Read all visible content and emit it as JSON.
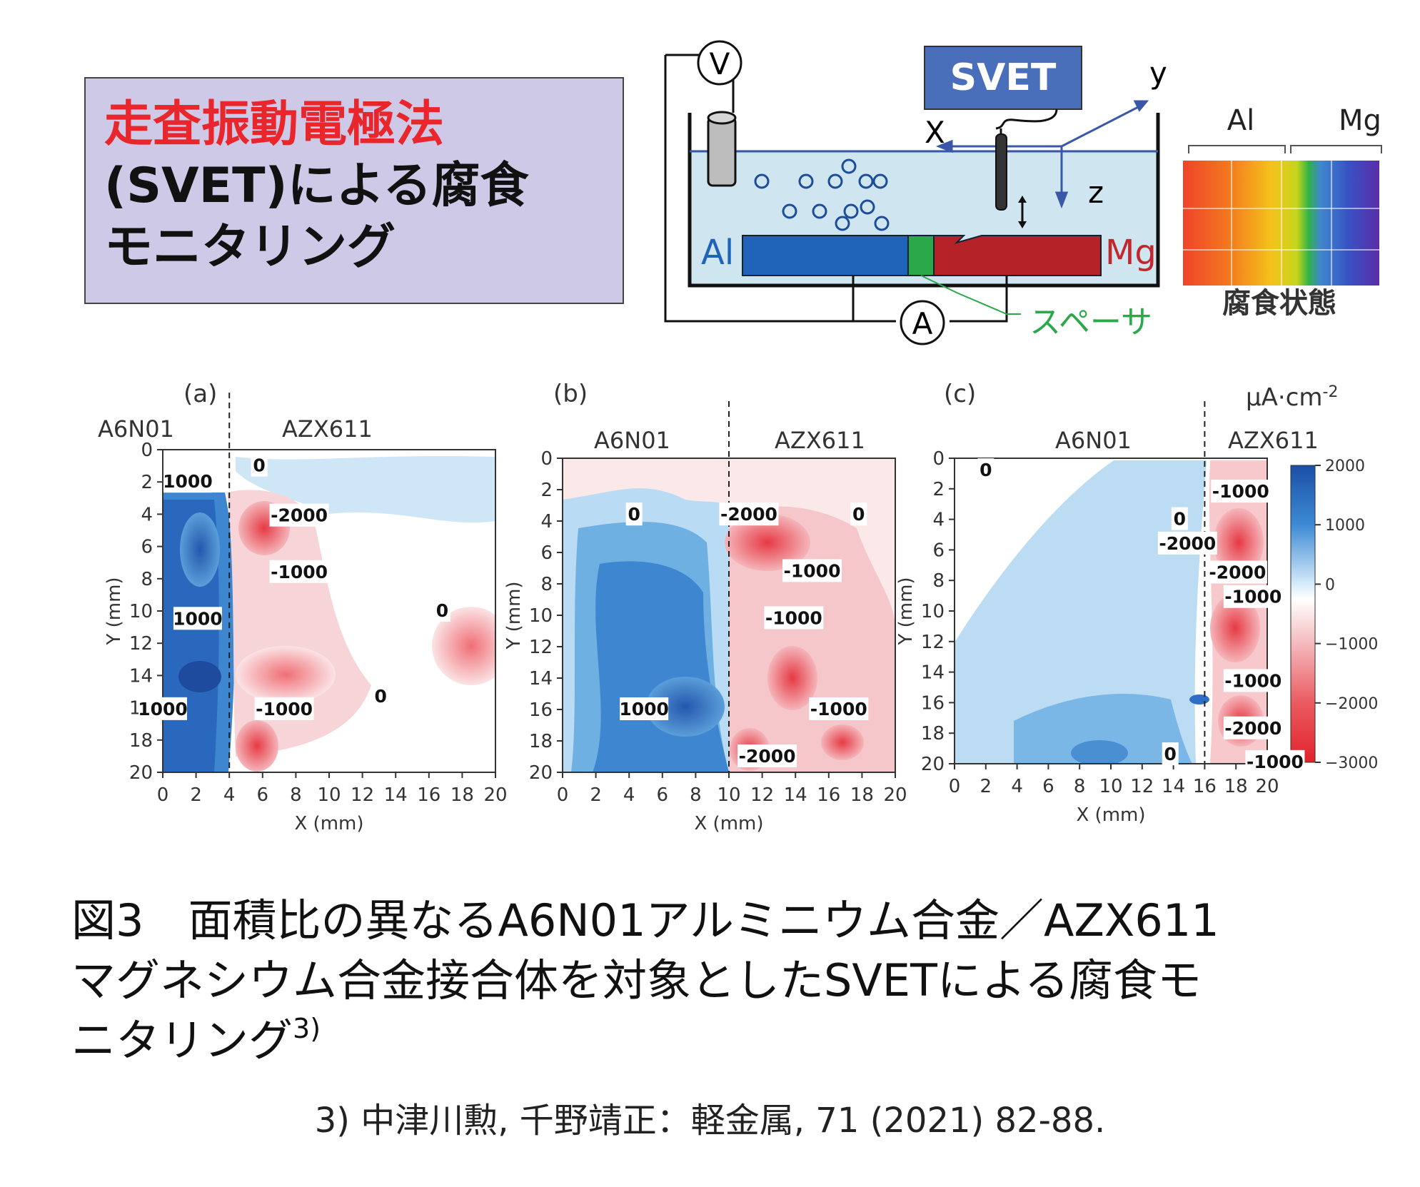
{
  "title": {
    "line1": "走査振動電極法",
    "line2": "(SVET)による腐食",
    "line3": "モニタリング"
  },
  "schematic": {
    "voltmeter": "V",
    "ammeter": "A",
    "svet_label": "SVET",
    "axis_x": "X",
    "axis_y": "y",
    "axis_z": "z",
    "al_label": "Al",
    "mg_label": "Mg",
    "spacer_label": "スペーサ"
  },
  "corrosion_map": {
    "al_label": "Al",
    "mg_label": "Mg",
    "caption": "腐食状態"
  },
  "plots": {
    "xlabel": "X (mm)",
    "ylabel": "Y (mm)",
    "xticks": [
      "0",
      "2",
      "4",
      "6",
      "8",
      "10",
      "12",
      "14",
      "16",
      "18",
      "20"
    ],
    "yticks": [
      "0",
      "2",
      "4",
      "6",
      "8",
      "10",
      "12",
      "14",
      "16",
      "18",
      "20"
    ],
    "left_alloy": "A6N01",
    "right_alloy": "AZX611",
    "panel_a": {
      "label": "(a)",
      "boundary_x": 4,
      "annotations": [
        {
          "text": "1000",
          "x": 1.5,
          "y": 2
        },
        {
          "text": "0",
          "x": 5.8,
          "y": 1
        },
        {
          "text": "-2000",
          "x": 8.2,
          "y": 4.1
        },
        {
          "text": "-1000",
          "x": 8.2,
          "y": 7.6
        },
        {
          "text": "1000",
          "x": 2.1,
          "y": 10.5
        },
        {
          "text": "0",
          "x": 16.8,
          "y": 10
        },
        {
          "text": "0",
          "x": 13.1,
          "y": 15.3
        },
        {
          "text": "1000",
          "x": 0,
          "y": 16.1
        },
        {
          "text": "-1000",
          "x": 7.3,
          "y": 16.1
        }
      ]
    },
    "panel_b": {
      "label": "(b)",
      "boundary_x": 10,
      "annotations": [
        {
          "text": "0",
          "x": 4.3,
          "y": 3.6
        },
        {
          "text": "-2000",
          "x": 11.2,
          "y": 3.6
        },
        {
          "text": "0",
          "x": 17.8,
          "y": 3.6
        },
        {
          "text": "-1000",
          "x": 15,
          "y": 7.2
        },
        {
          "text": "-1000",
          "x": 13.9,
          "y": 10.2
        },
        {
          "text": "1000",
          "x": 4.9,
          "y": 16
        },
        {
          "text": "-1000",
          "x": 16.6,
          "y": 16
        },
        {
          "text": "-2000",
          "x": 12.3,
          "y": 19
        }
      ]
    },
    "panel_c": {
      "label": "(c)",
      "boundary_x": 16,
      "annotations": [
        {
          "text": "0",
          "x": 2,
          "y": 0.8
        },
        {
          "text": "-1000",
          "x": 18.3,
          "y": 2.2
        },
        {
          "text": "0",
          "x": 14.4,
          "y": 4
        },
        {
          "text": "-2000",
          "x": 14.9,
          "y": 5.6
        },
        {
          "text": "-2000",
          "x": 18.1,
          "y": 7.5
        },
        {
          "text": "-1000",
          "x": 19.1,
          "y": 9.1
        },
        {
          "text": "-1000",
          "x": 19.1,
          "y": 14.6
        },
        {
          "text": "-2000",
          "x": 19.1,
          "y": 17.7
        },
        {
          "text": "0",
          "x": 13.8,
          "y": 19.4
        },
        {
          "text": "-1000",
          "x": 20.5,
          "y": 19.9
        }
      ]
    },
    "colorbar": {
      "unit": "μA·cm",
      "unit_exp": "-2",
      "ticks": [
        "2000",
        "1000",
        "0",
        "−1000",
        "−2000",
        "−3000"
      ]
    },
    "colors": {
      "anodic_red": "#e8333b",
      "cathodic_blue": "#1d5ab0",
      "neutral": "#ffffff"
    }
  },
  "caption": {
    "line1": "図3　面積比の異なるA6N01アルミニウム合金／AZX611",
    "line2": "マグネシウム合金接合体を対象としたSVETによる腐食モ",
    "line3": "ニタリング",
    "ref_mark": "3)"
  },
  "reference": "3) 中津川勲, 千野靖正：軽金属, 71 (2021) 82-88."
}
